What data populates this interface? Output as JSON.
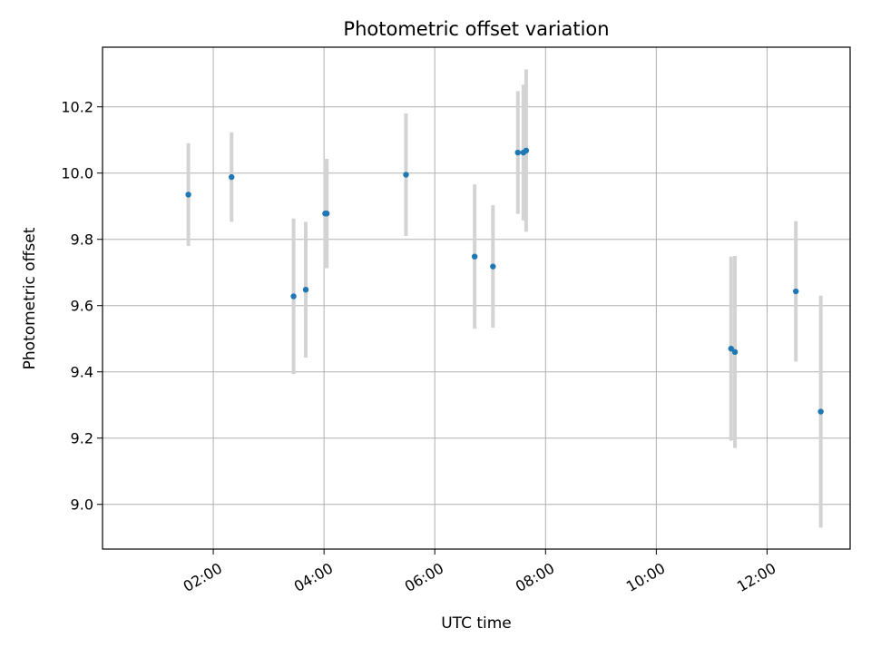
{
  "chart_data": {
    "type": "scatter",
    "title": "Photometric offset variation",
    "xlabel": "UTC time",
    "ylabel": "Photometric offset",
    "x_unit": "hours",
    "xlim": [
      0.0,
      13.5
    ],
    "ylim": [
      8.865,
      10.38
    ],
    "x_ticks": [
      {
        "value": 2,
        "label": "02:00"
      },
      {
        "value": 4,
        "label": "04:00"
      },
      {
        "value": 6,
        "label": "06:00"
      },
      {
        "value": 8,
        "label": "08:00"
      },
      {
        "value": 10,
        "label": "10:00"
      },
      {
        "value": 12,
        "label": "12:00"
      }
    ],
    "y_ticks": [
      {
        "value": 9.0,
        "label": "9.0"
      },
      {
        "value": 9.2,
        "label": "9.2"
      },
      {
        "value": 9.4,
        "label": "9.4"
      },
      {
        "value": 9.6,
        "label": "9.6"
      },
      {
        "value": 9.8,
        "label": "9.8"
      },
      {
        "value": 10.0,
        "label": "10.0"
      },
      {
        "value": 10.2,
        "label": "10.2"
      }
    ],
    "grid": true,
    "legend": false,
    "points": [
      {
        "x": 1.55,
        "y": 9.935,
        "err": 0.155
      },
      {
        "x": 2.33,
        "y": 9.988,
        "err": 0.135
      },
      {
        "x": 3.45,
        "y": 9.628,
        "err": 0.235
      },
      {
        "x": 3.67,
        "y": 9.648,
        "err": 0.205
      },
      {
        "x": 4.02,
        "y": 9.878,
        "err": 0.165
      },
      {
        "x": 4.05,
        "y": 9.878,
        "err": 0.165
      },
      {
        "x": 5.48,
        "y": 9.995,
        "err": 0.185
      },
      {
        "x": 6.72,
        "y": 9.748,
        "err": 0.218
      },
      {
        "x": 7.05,
        "y": 9.718,
        "err": 0.185
      },
      {
        "x": 7.5,
        "y": 10.062,
        "err": 0.185
      },
      {
        "x": 7.6,
        "y": 10.062,
        "err": 0.205
      },
      {
        "x": 7.65,
        "y": 10.068,
        "err": 0.245
      },
      {
        "x": 11.35,
        "y": 9.47,
        "err": 0.278
      },
      {
        "x": 11.42,
        "y": 9.46,
        "err": 0.29
      },
      {
        "x": 12.52,
        "y": 9.643,
        "err": 0.212
      },
      {
        "x": 12.97,
        "y": 9.28,
        "err": 0.35
      }
    ],
    "colors": {
      "points": "#1f77b4",
      "errorbars": "#d3d3d3",
      "grid": "#b0b0b0",
      "axes": "#000000"
    }
  }
}
